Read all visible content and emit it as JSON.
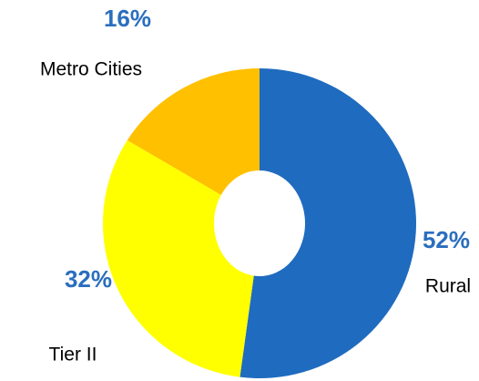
{
  "chart_data": {
    "type": "donut",
    "categories": [
      "Rural",
      "Tier II",
      "Metro Cities"
    ],
    "values": [
      52,
      32,
      16
    ],
    "value_labels": [
      "52%",
      "32%",
      "16%"
    ],
    "colors": [
      "#1f6bbf",
      "#ffff00",
      "#ffc000"
    ]
  }
}
